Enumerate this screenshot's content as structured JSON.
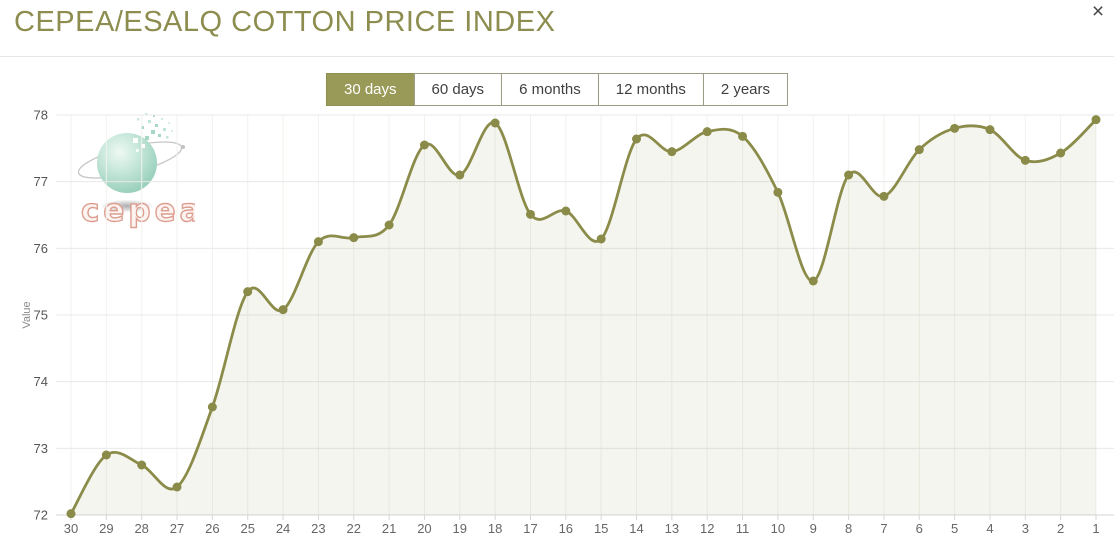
{
  "header": {
    "title": "CEPEA/ESALQ COTTON PRICE INDEX",
    "close_icon": "×"
  },
  "ranges": {
    "buttons": [
      {
        "label": "30 days",
        "active": true
      },
      {
        "label": "60 days",
        "active": false
      },
      {
        "label": "6 months",
        "active": false
      },
      {
        "label": "12 months",
        "active": false
      },
      {
        "label": "2 years",
        "active": false
      }
    ]
  },
  "logo": {
    "text": "cepea"
  },
  "colors": {
    "accent": "#8b8c4a",
    "title_text": "#8c8d4f",
    "button_active_bg": "#999a58",
    "line": "#8b8c4a",
    "marker": "#8a8b49",
    "area_fill": "rgba(140,141,75,0.085)",
    "grid_h": "#e8e8e8",
    "grid_v": "#f1f1ec",
    "axis_line": "#d6d6d6",
    "tick_label": "#555555",
    "x_label": "#666666",
    "y_axis_title": "#8a8a8a"
  },
  "chart_data": {
    "type": "area",
    "title": "CEPEA/ESALQ COTTON PRICE INDEX",
    "xlabel": "",
    "ylabel": "Value",
    "legend": "none",
    "grid": true,
    "ylim": [
      72,
      78
    ],
    "yticks": [
      72,
      73,
      74,
      75,
      76,
      77,
      78
    ],
    "categories": [
      "30",
      "29",
      "28",
      "27",
      "26",
      "25",
      "24",
      "23",
      "22",
      "21",
      "20",
      "19",
      "18",
      "17",
      "16",
      "15",
      "14",
      "13",
      "12",
      "11",
      "10",
      "9",
      "8",
      "7",
      "6",
      "5",
      "4",
      "3",
      "2",
      "1"
    ],
    "values": [
      72.02,
      72.9,
      72.75,
      72.42,
      73.62,
      75.35,
      75.08,
      76.1,
      76.16,
      76.35,
      77.55,
      77.1,
      77.88,
      76.51,
      76.56,
      76.14,
      77.64,
      77.45,
      77.75,
      77.68,
      76.84,
      75.51,
      77.1,
      76.78,
      77.48,
      77.8,
      77.78,
      77.32,
      77.43,
      77.93
    ]
  }
}
